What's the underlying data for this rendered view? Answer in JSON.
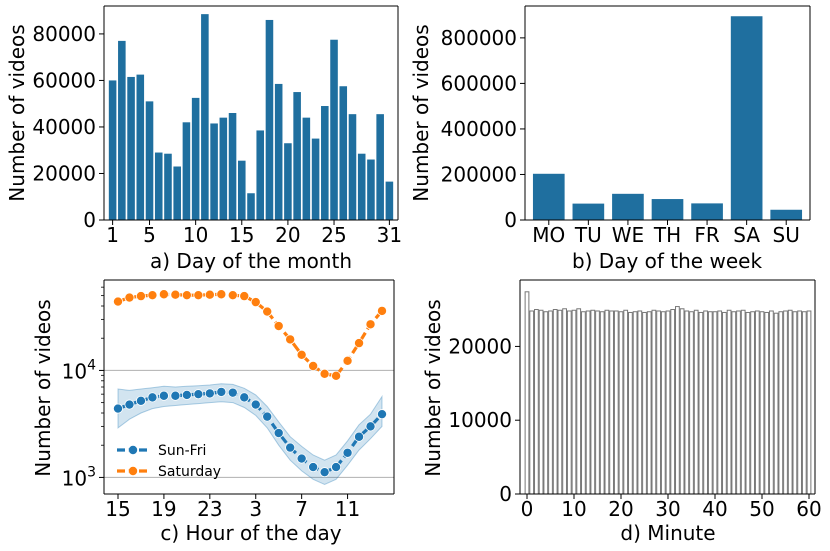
{
  "chart_data": [
    {
      "type": "bar",
      "xlabel": "a) Day of the month",
      "ylabel": "Number of videos",
      "x": [
        1,
        2,
        3,
        4,
        5,
        6,
        7,
        8,
        9,
        10,
        11,
        12,
        13,
        14,
        15,
        16,
        17,
        18,
        19,
        20,
        21,
        22,
        23,
        24,
        25,
        26,
        27,
        28,
        29,
        30,
        31
      ],
      "values": [
        60000,
        77000,
        61500,
        62500,
        51000,
        29000,
        28500,
        23000,
        42000,
        52500,
        88500,
        41500,
        44000,
        46000,
        25500,
        11500,
        38500,
        86000,
        58500,
        33000,
        55000,
        44000,
        35000,
        49000,
        77500,
        57500,
        45500,
        28500,
        26000,
        45500,
        16500
      ],
      "xticks": [
        "1",
        "5",
        "10",
        "15",
        "20",
        "25",
        "31"
      ],
      "yticks": [
        "0",
        "20000",
        "40000",
        "60000",
        "80000"
      ],
      "ylim": [
        0,
        92000
      ],
      "color": "#1f6f9f"
    },
    {
      "type": "bar",
      "xlabel": "b) Day of the week",
      "ylabel": "Number of videos",
      "categories": [
        "MO",
        "TU",
        "WE",
        "TH",
        "FR",
        "SA",
        "SU"
      ],
      "values": [
        203000,
        72000,
        115000,
        92000,
        73000,
        895000,
        45000
      ],
      "yticks": [
        "0",
        "200000",
        "400000",
        "600000",
        "800000"
      ],
      "ylim": [
        0,
        940000
      ],
      "color": "#1f6f9f"
    },
    {
      "type": "line",
      "xlabel": "c) Hour of the day",
      "ylabel": "Number of videos",
      "yscale": "log",
      "x_hours": [
        15,
        16,
        17,
        18,
        19,
        20,
        21,
        22,
        23,
        0,
        1,
        2,
        3,
        4,
        5,
        6,
        7,
        8,
        9,
        10,
        11,
        12,
        13,
        14
      ],
      "xticks": [
        "15",
        "19",
        "23",
        "3",
        "7",
        "11"
      ],
      "yticks": [
        "10^3",
        "10^4"
      ],
      "ylim": [
        700,
        70000
      ],
      "grid": true,
      "legend_position": "lower-left",
      "series": [
        {
          "name": "Sun-Fri",
          "color": "#1f77b4",
          "values": [
            4400,
            4800,
            5200,
            5600,
            5800,
            5800,
            5900,
            6000,
            6100,
            6300,
            6200,
            5600,
            4800,
            3700,
            2600,
            1900,
            1500,
            1250,
            1120,
            1250,
            1700,
            2400,
            3000,
            3900
          ],
          "band_low": [
            2900,
            3500,
            4000,
            4400,
            4600,
            4700,
            4800,
            4900,
            5000,
            5100,
            5000,
            4500,
            3800,
            2900,
            2000,
            1450,
            1150,
            960,
            860,
            960,
            1300,
            1800,
            2300,
            3000
          ],
          "band_high": [
            6700,
            6500,
            6700,
            6900,
            7100,
            7000,
            7100,
            7200,
            7300,
            7500,
            7400,
            6800,
            5900,
            4600,
            3300,
            2400,
            1950,
            1620,
            1450,
            1620,
            2200,
            3100,
            3900,
            5700
          ]
        },
        {
          "name": "Saturday",
          "color": "#ff7f0e",
          "values": [
            44000,
            48000,
            49500,
            50500,
            51500,
            51000,
            50500,
            50500,
            51000,
            51500,
            50500,
            49500,
            43500,
            35500,
            26000,
            19500,
            14000,
            11000,
            9300,
            8900,
            12300,
            18000,
            27000,
            36000
          ]
        }
      ]
    },
    {
      "type": "bar",
      "xlabel": "d) Minute",
      "ylabel": "Number of videos",
      "x": [
        0,
        1,
        2,
        3,
        4,
        5,
        6,
        7,
        8,
        9,
        10,
        11,
        12,
        13,
        14,
        15,
        16,
        17,
        18,
        19,
        20,
        21,
        22,
        23,
        24,
        25,
        26,
        27,
        28,
        29,
        30,
        31,
        32,
        33,
        34,
        35,
        36,
        37,
        38,
        39,
        40,
        41,
        42,
        43,
        44,
        45,
        46,
        47,
        48,
        49,
        50,
        51,
        52,
        53,
        54,
        55,
        56,
        57,
        58,
        59,
        60
      ],
      "values": [
        27400,
        24800,
        25000,
        24900,
        24700,
        24800,
        25000,
        24900,
        25100,
        24800,
        24900,
        25100,
        24700,
        24800,
        24900,
        24800,
        24700,
        24900,
        24800,
        24800,
        24700,
        24900,
        24600,
        24700,
        24800,
        24600,
        24700,
        24900,
        24800,
        24700,
        24800,
        25000,
        25400,
        25100,
        24800,
        24700,
        24900,
        24600,
        24800,
        24700,
        24700,
        24800,
        24600,
        24900,
        24700,
        24800,
        24900,
        24600,
        24700,
        24800,
        24700,
        24600,
        24800,
        24500,
        24700,
        24800,
        24900,
        24700,
        24800,
        24700,
        24800
      ],
      "xticks": [
        "0",
        "10",
        "20",
        "30",
        "40",
        "50",
        "60"
      ],
      "yticks": [
        "0",
        "10000",
        "20000"
      ],
      "ylim": [
        0,
        29000
      ],
      "color": "#ffffff",
      "edgecolor": "#777777"
    }
  ]
}
